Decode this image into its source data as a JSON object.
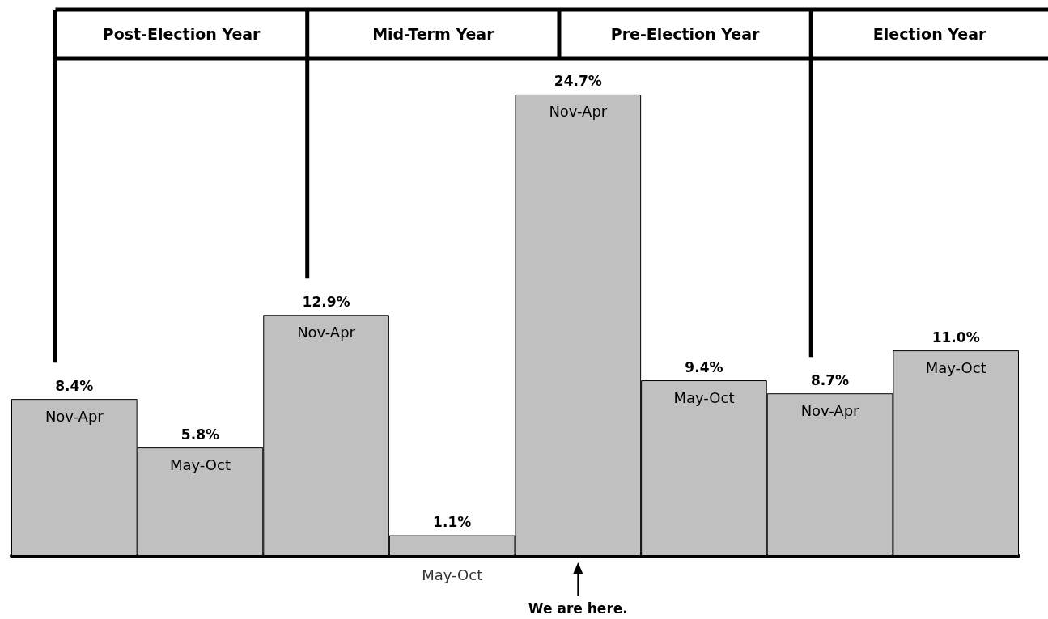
{
  "chart_data": {
    "type": "bar",
    "categories": [
      "Nov-Apr",
      "May-Oct",
      "Nov-Apr",
      "May-Oct",
      "Nov-Apr",
      "May-Oct",
      "Nov-Apr",
      "May-Oct"
    ],
    "values": [
      8.4,
      5.8,
      12.9,
      1.1,
      24.7,
      9.4,
      8.7,
      11.0
    ],
    "value_labels": [
      "8.4%",
      "5.8%",
      "12.9%",
      "1.1%",
      "24.7%",
      "9.4%",
      "8.7%",
      "11.0%"
    ],
    "color": "#c0c0c0",
    "annotations": [
      "Post-Election Year",
      "Mid-Term Year",
      "Pre-Election Year",
      "Election Year",
      "We are here."
    ]
  }
}
